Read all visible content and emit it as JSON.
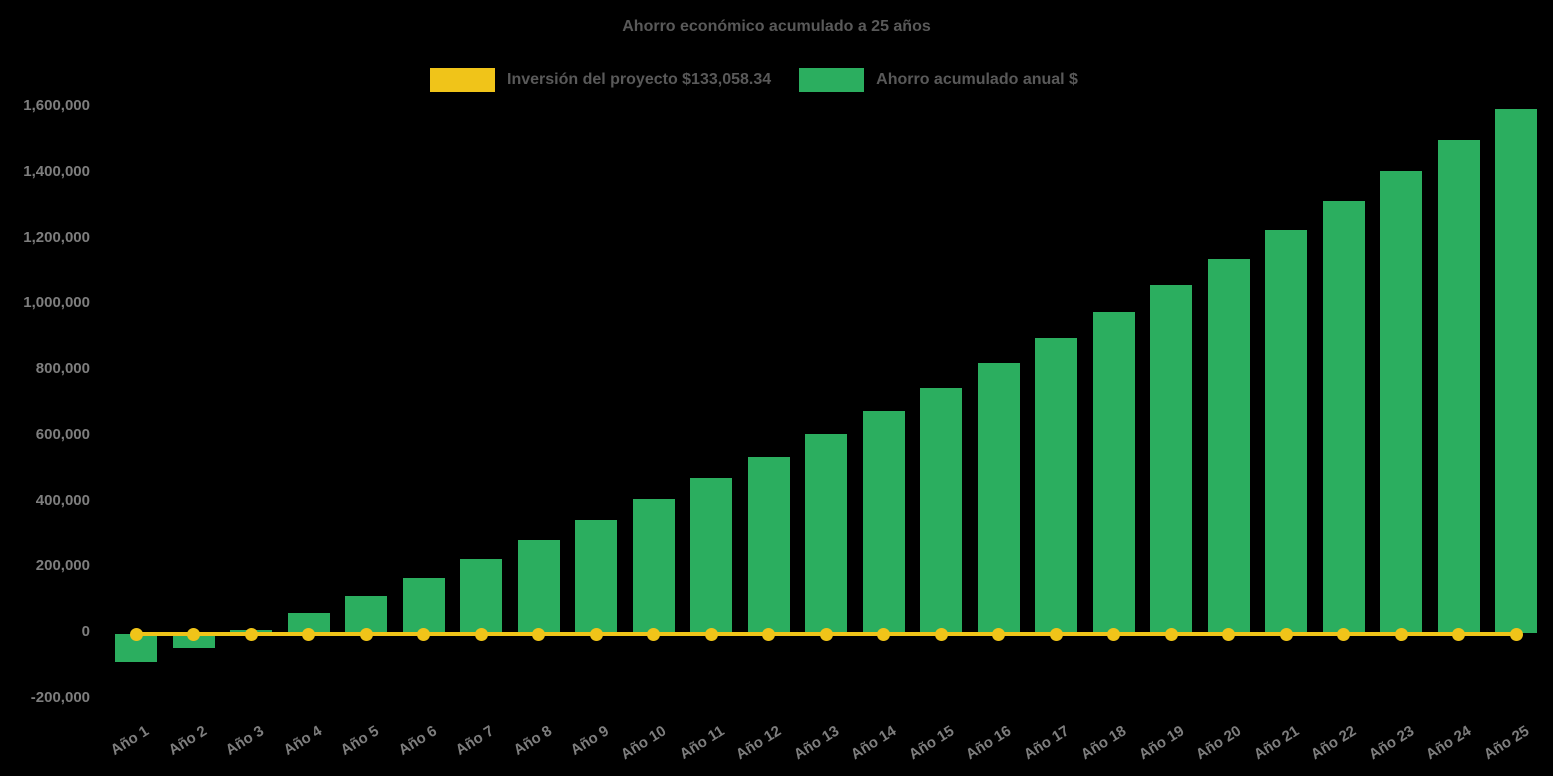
{
  "title": "Ahorro económico acumulado a 25 años",
  "legend": {
    "investment_label": "Inversión del proyecto $133,058.34",
    "savings_label": "Ahorro acumulado anual $"
  },
  "colors": {
    "bar_green": "#2BAE5F",
    "line_yellow": "#F0C419",
    "title_text": "#595959",
    "tick_text": "#7E7E7E",
    "background": "#000000"
  },
  "chart_data": {
    "type": "bar",
    "title": "Ahorro económico acumulado a 25 años",
    "categories": [
      "Año 1",
      "Año 2",
      "Año 3",
      "Año 4",
      "Año 5",
      "Año 6",
      "Año 7",
      "Año 8",
      "Año 9",
      "Año 10",
      "Año 11",
      "Año 12",
      "Año 13",
      "Año 14",
      "Año 15",
      "Año 16",
      "Año 17",
      "Año 18",
      "Año 19",
      "Año 20",
      "Año 21",
      "Año 22",
      "Año 23",
      "Año 24",
      "Año 25"
    ],
    "series": [
      {
        "name": "Ahorro acumulado anual $",
        "type": "bar",
        "color": "#2BAE5F",
        "values": [
          -88000,
          -43000,
          12000,
          63000,
          114000,
          168000,
          226000,
          285000,
          346000,
          410000,
          474000,
          537000,
          608000,
          678000,
          748000,
          822000,
          898000,
          978000,
          1061000,
          1140000,
          1228000,
          1317000,
          1408000,
          1501000,
          1596000
        ]
      },
      {
        "name": "Inversión del proyecto $133,058.34",
        "type": "line",
        "color": "#F0C419",
        "investment_amount": 133058.34,
        "plotted_at": 0,
        "values": [
          0,
          0,
          0,
          0,
          0,
          0,
          0,
          0,
          0,
          0,
          0,
          0,
          0,
          0,
          0,
          0,
          0,
          0,
          0,
          0,
          0,
          0,
          0,
          0,
          0
        ]
      }
    ],
    "y_ticks": [
      1600000,
      1400000,
      1200000,
      1000000,
      800000,
      600000,
      400000,
      200000,
      0,
      -200000
    ],
    "y_tick_labels": [
      "1,600,000",
      "1,400,000",
      "1,200,000",
      "1,000,000",
      "800,000",
      "600,000",
      "400,000",
      "200,000",
      "0",
      "-200,000"
    ],
    "ylim": [
      -200000,
      1600000
    ],
    "xlabel": "",
    "ylabel": "",
    "grid": false,
    "legend_position": "top"
  }
}
